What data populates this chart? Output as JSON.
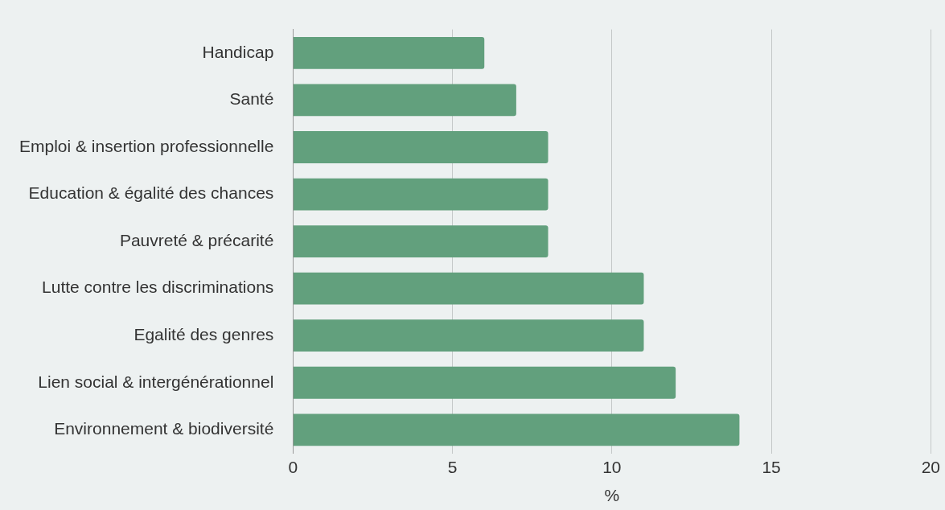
{
  "chart_data": {
    "type": "bar",
    "orientation": "horizontal",
    "categories": [
      "Handicap",
      "Santé",
      "Emploi & insertion professionnelle",
      "Education & égalité des chances",
      "Pauvreté & précarité",
      "Lutte contre les discriminations",
      "Egalité des genres",
      "Lien social & intergénérationnel",
      "Environnement & biodiversité"
    ],
    "values": [
      6,
      7,
      8,
      8,
      8,
      11,
      11,
      12,
      14
    ],
    "color": "#62a07d",
    "xlabel": "%",
    "xlim": [
      0,
      20
    ],
    "xticks": [
      0,
      5,
      10,
      15,
      20
    ],
    "grid": "x"
  }
}
